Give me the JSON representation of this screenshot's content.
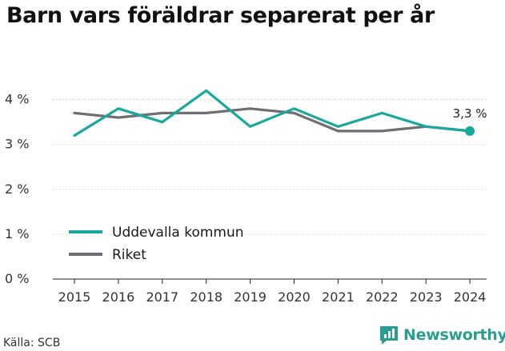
{
  "title": "Barn vars föräldrar separerat per år",
  "source": "Källa: SCB",
  "brand": "Newsworthy",
  "colors": {
    "accent": "#1aa89c",
    "national": "#6e6e73",
    "brand": "#2a9d8f"
  },
  "chart_data": {
    "type": "line",
    "title": "Barn vars föräldrar separerat per år",
    "x": [
      "2015",
      "2016",
      "2017",
      "2018",
      "2019",
      "2020",
      "2021",
      "2022",
      "2023",
      "2024"
    ],
    "y_ticks": [
      0,
      1,
      2,
      3,
      4
    ],
    "y_tick_labels": [
      "0 %",
      "1 %",
      "2 %",
      "3 %",
      "4 %"
    ],
    "ylim": [
      0,
      4.4
    ],
    "grid": true,
    "legend_position": "lower-left",
    "series": [
      {
        "name": "Uddevalla kommun",
        "color": "#1aa89c",
        "values": [
          3.2,
          3.8,
          3.5,
          4.2,
          3.4,
          3.8,
          3.4,
          3.7,
          3.4,
          3.3
        ]
      },
      {
        "name": "Riket",
        "color": "#6e6e73",
        "values": [
          3.7,
          3.6,
          3.7,
          3.7,
          3.8,
          3.7,
          3.3,
          3.3,
          3.4,
          3.3
        ]
      }
    ],
    "annotation": {
      "series": 0,
      "index": 9,
      "text": "3,3 %"
    }
  }
}
